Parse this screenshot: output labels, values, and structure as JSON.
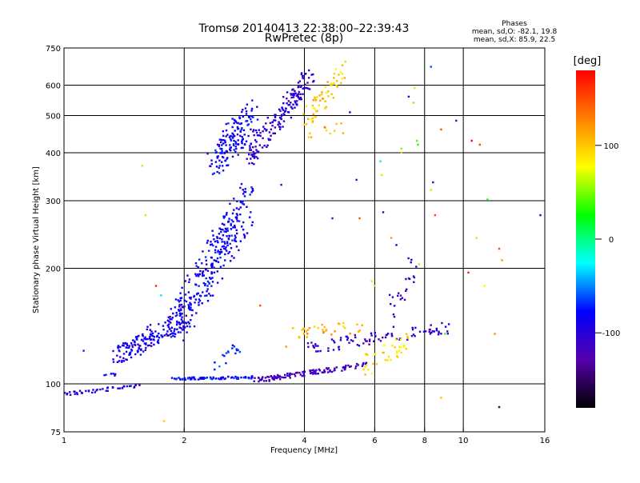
{
  "chart_data": {
    "type": "scatter",
    "title": "Tromsø 20140413 22:38:00–22:39:43",
    "subtitle": "RwPretec (8p)",
    "stats_title": "Phases",
    "stats_lines": [
      "mean, sd,O: -82.1, 19.8",
      "mean, sd,X:  85.9, 22.5"
    ],
    "xlabel": "Frequency [MHz]",
    "ylabel": "Stationary phase Virtual Height [km]",
    "x_scale": "log",
    "y_scale": "log",
    "xlim": [
      1,
      16
    ],
    "ylim": [
      75,
      750
    ],
    "x_ticks": [
      1,
      2,
      4,
      6,
      8,
      10,
      16
    ],
    "y_ticks": [
      75,
      100,
      200,
      300,
      400,
      500,
      600,
      750
    ],
    "x_grid": [
      2,
      4,
      6,
      8,
      10
    ],
    "y_grid": [
      100,
      200,
      300,
      400,
      500,
      600
    ],
    "grid": true,
    "colorbar": {
      "label": "[deg]",
      "range": [
        -180,
        180
      ],
      "ticks": [
        100,
        0,
        -100
      ],
      "colors": [
        "#000000",
        "#5500aa",
        "#0000ff",
        "#00ffff",
        "#00ff00",
        "#ffff00",
        "#ff8000",
        "#ff0000"
      ]
    },
    "trace_groups": [
      {
        "x": [
          1.0,
          1.55
        ],
        "y": [
          94,
          99
        ],
        "n": 45,
        "phase": -105,
        "jitter": 0.008
      },
      {
        "x": [
          1.35,
          2.05
        ],
        "y": [
          118,
          150
        ],
        "n": 170,
        "phase": -90,
        "jitter": 0.05
      },
      {
        "x": [
          1.25,
          1.36
        ],
        "y": [
          104,
          106
        ],
        "n": 6,
        "phase": -80,
        "jitter": 0.01
      },
      {
        "x": [
          1.9,
          2.9
        ],
        "y": [
          140,
          300
        ],
        "n": 300,
        "phase": -85,
        "jitter": 0.1
      },
      {
        "x": [
          2.35,
          2.75
        ],
        "y": [
          110,
          125
        ],
        "n": 18,
        "phase": -70,
        "jitter": 0.03
      },
      {
        "x": [
          1.85,
          3.0
        ],
        "y": [
          103,
          104
        ],
        "n": 80,
        "phase": -80,
        "jitter": 0.006
      },
      {
        "x": [
          3.0,
          5.7
        ],
        "y": [
          102,
          112
        ],
        "n": 120,
        "phase": -115,
        "jitter": 0.012
      },
      {
        "x": [
          2.35,
          3.0
        ],
        "y": [
          380,
          500
        ],
        "n": 160,
        "phase": -85,
        "jitter": 0.08
      },
      {
        "x": [
          2.9,
          4.2
        ],
        "y": [
          390,
          640
        ],
        "n": 170,
        "phase": -105,
        "jitter": 0.05
      },
      {
        "x": [
          4.0,
          5.0
        ],
        "y": [
          480,
          660
        ],
        "n": 60,
        "phase": 100,
        "jitter": 0.05
      },
      {
        "x": [
          4.1,
          5.0
        ],
        "y": [
          440,
          470
        ],
        "n": 10,
        "phase": 110,
        "jitter": 0.02
      },
      {
        "x": [
          3.7,
          5.6
        ],
        "y": [
          136,
          140
        ],
        "n": 35,
        "phase": 110,
        "jitter": 0.03
      },
      {
        "x": [
          4.1,
          9.2
        ],
        "y": [
          124,
          140
        ],
        "n": 90,
        "phase": -110,
        "jitter": 0.03
      },
      {
        "x": [
          5.5,
          7.2
        ],
        "y": [
          110,
          128
        ],
        "n": 40,
        "phase": 90,
        "jitter": 0.05
      },
      {
        "x": [
          6.5,
          7.5
        ],
        "y": [
          150,
          200
        ],
        "n": 25,
        "phase": -105,
        "jitter": 0.06
      }
    ],
    "scatter_points": [
      {
        "x": 1.12,
        "y": 122,
        "phase": -70
      },
      {
        "x": 1.57,
        "y": 370,
        "phase": 60
      },
      {
        "x": 1.6,
        "y": 275,
        "phase": 60
      },
      {
        "x": 1.7,
        "y": 180,
        "phase": 170
      },
      {
        "x": 1.75,
        "y": 170,
        "phase": -30
      },
      {
        "x": 1.78,
        "y": 80,
        "phase": 100
      },
      {
        "x": 3.1,
        "y": 160,
        "phase": 150
      },
      {
        "x": 3.5,
        "y": 330,
        "phase": -110
      },
      {
        "x": 3.6,
        "y": 125,
        "phase": 120
      },
      {
        "x": 4.7,
        "y": 270,
        "phase": -130
      },
      {
        "x": 5.0,
        "y": 450,
        "phase": 110
      },
      {
        "x": 5.2,
        "y": 510,
        "phase": -90
      },
      {
        "x": 5.4,
        "y": 340,
        "phase": -130
      },
      {
        "x": 5.5,
        "y": 270,
        "phase": 150
      },
      {
        "x": 6.2,
        "y": 380,
        "phase": -30
      },
      {
        "x": 6.25,
        "y": 350,
        "phase": 60
      },
      {
        "x": 6.3,
        "y": 280,
        "phase": -120
      },
      {
        "x": 6.6,
        "y": 240,
        "phase": 120
      },
      {
        "x": 6.8,
        "y": 230,
        "phase": -90
      },
      {
        "x": 7.0,
        "y": 410,
        "phase": 50
      },
      {
        "x": 7.0,
        "y": 400,
        "phase": 100
      },
      {
        "x": 7.3,
        "y": 560,
        "phase": -100
      },
      {
        "x": 7.5,
        "y": 540,
        "phase": 50
      },
      {
        "x": 7.55,
        "y": 590,
        "phase": 90
      },
      {
        "x": 7.7,
        "y": 420,
        "phase": 30
      },
      {
        "x": 7.65,
        "y": 430,
        "phase": 40
      },
      {
        "x": 7.75,
        "y": 205,
        "phase": 60
      },
      {
        "x": 8.3,
        "y": 670,
        "phase": -60
      },
      {
        "x": 8.4,
        "y": 335,
        "phase": -110
      },
      {
        "x": 8.5,
        "y": 275,
        "phase": 150
      },
      {
        "x": 8.3,
        "y": 320,
        "phase": 60
      },
      {
        "x": 8.8,
        "y": 460,
        "phase": 150
      },
      {
        "x": 8.8,
        "y": 92,
        "phase": 100
      },
      {
        "x": 9.6,
        "y": 485,
        "phase": -120
      },
      {
        "x": 10.5,
        "y": 430,
        "phase": 175
      },
      {
        "x": 11.0,
        "y": 420,
        "phase": 150
      },
      {
        "x": 10.8,
        "y": 240,
        "phase": 60
      },
      {
        "x": 11.5,
        "y": 302,
        "phase": 20
      },
      {
        "x": 10.3,
        "y": 195,
        "phase": 170
      },
      {
        "x": 11.3,
        "y": 180,
        "phase": 80
      },
      {
        "x": 12.0,
        "y": 135,
        "phase": 120
      },
      {
        "x": 12.3,
        "y": 225,
        "phase": 150
      },
      {
        "x": 12.5,
        "y": 210,
        "phase": 120
      },
      {
        "x": 12.3,
        "y": 87,
        "phase": -150
      },
      {
        "x": 15.6,
        "y": 275,
        "phase": -110
      },
      {
        "x": 9.0,
        "y": 135,
        "phase": 40
      },
      {
        "x": 5.9,
        "y": 185,
        "phase": 90
      },
      {
        "x": 6.0,
        "y": 180,
        "phase": 60
      }
    ]
  }
}
